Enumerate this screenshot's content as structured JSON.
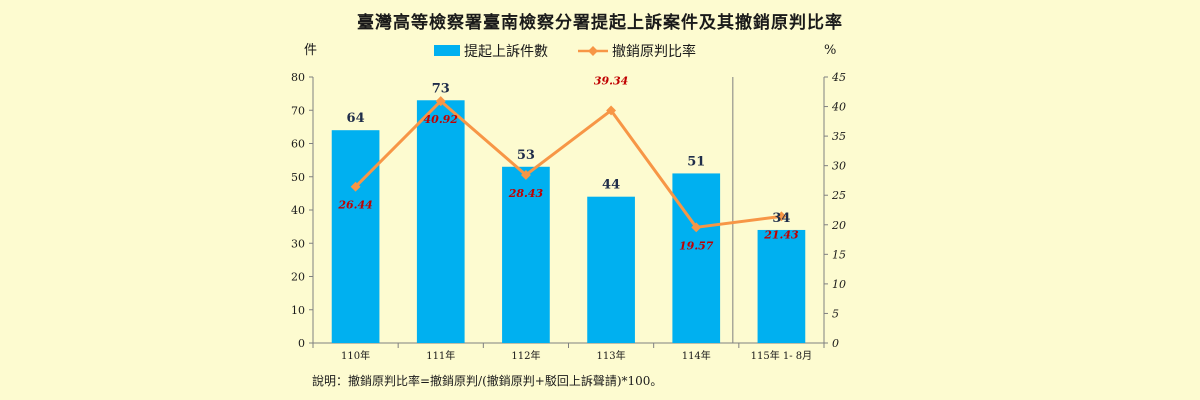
{
  "chart_data": {
    "type": "bar",
    "title": "臺灣高等檢察署臺南檢察分署提起上訴案件及其撤銷原判比率",
    "y_left_unit": "件",
    "y_right_unit": "%",
    "categories": [
      "110年",
      "111年",
      "112年",
      "113年",
      "114年",
      "115年 1- 8月"
    ],
    "ylim_left": [
      0,
      80
    ],
    "ylim_right": [
      0,
      45
    ],
    "y_left_ticks": [
      0,
      10,
      20,
      30,
      40,
      50,
      60,
      70,
      80
    ],
    "y_right_ticks": [
      0,
      5,
      10,
      15,
      20,
      25,
      30,
      35,
      40,
      45
    ],
    "series": [
      {
        "name": "提起上訴件數",
        "type": "bar",
        "axis": "left",
        "color": "#00b0f0",
        "values": [
          64,
          73,
          53,
          44,
          51,
          34
        ],
        "labels": [
          "64",
          "73",
          "53",
          "44",
          "51",
          "34"
        ]
      },
      {
        "name": "撤銷原判比率",
        "type": "line",
        "axis": "right",
        "color": "#f79646",
        "values": [
          26.44,
          40.92,
          28.43,
          39.34,
          19.57,
          21.43
        ],
        "labels": [
          "26.44",
          "40.92",
          "28.43",
          "39.34",
          "19.57",
          "21.43"
        ]
      }
    ],
    "grid": false,
    "legend_position": "top",
    "footnote": "說明：撤銷原判比率=撤銷原判/(撤銷原判+駁回上訴聲請)*100。"
  }
}
